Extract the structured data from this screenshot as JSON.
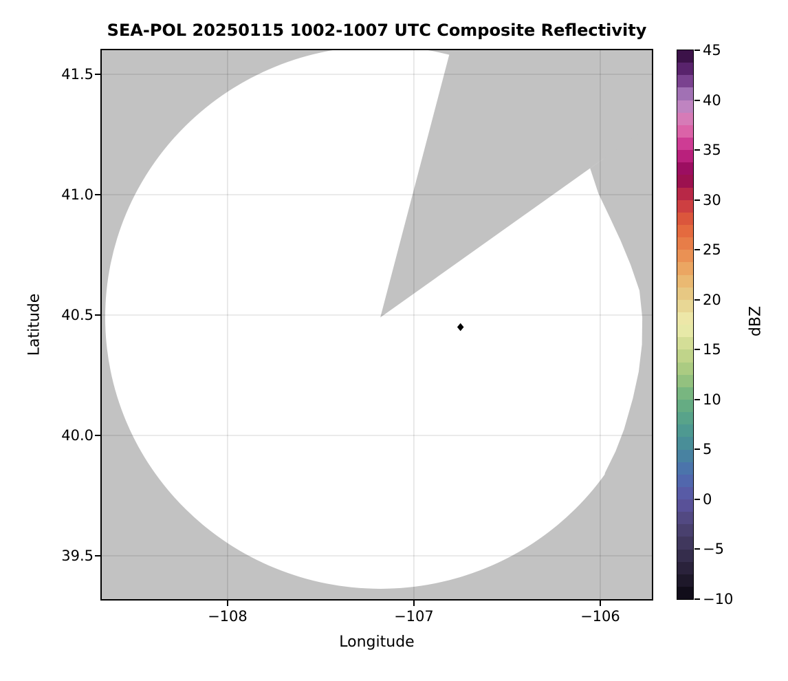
{
  "figure": {
    "background_color": "#ffffff",
    "plot_background_color": "#c2c2c2",
    "grid_color": "rgba(0,0,0,0.11)",
    "spine_color": "#000000"
  },
  "chart_data": {
    "type": "heatmap",
    "subtype": "radar-ppi-composite-reflectivity",
    "title": "SEA-POL 20250115 1002-1007 UTC Composite Reflectivity",
    "xlabel": "Longitude",
    "ylabel": "Latitude",
    "xlim": [
      -108.675,
      -105.723
    ],
    "ylim": [
      39.32,
      41.6
    ],
    "x_ticks": [
      -108,
      -107,
      -106
    ],
    "x_tick_labels": [
      "−108",
      "−107",
      "−106"
    ],
    "y_ticks": [
      41.5,
      41.0,
      40.5,
      40.0,
      39.5
    ],
    "y_tick_labels": [
      "41.5",
      "41.0",
      "40.5",
      "40.0",
      "39.5"
    ],
    "grid": true,
    "radar": {
      "center_lon": -107.18,
      "center_lat": 40.49,
      "coverage_radius_lon_deg": 1.4766,
      "coverage_radius_lat_deg": 1.127,
      "coverage_fill": "#ffffff",
      "no_data_fill": "#c2c2c2",
      "echoes": "none visible - reflectivity field blank within coverage",
      "missing_sectors": [
        {
          "type": "wedge",
          "azimuth_start_deg": 14.5,
          "azimuth_end_deg": 54.2,
          "radius_frac_start": 0,
          "radius_frac_end": 1
        },
        {
          "type": "annular-wedge",
          "azimuth_start_deg": 54.2,
          "azimuth_end_deg": 128,
          "radius_frac_end": 1,
          "inner_edge": [
            [
              54.2,
              0.94
            ],
            [
              60,
              0.915
            ],
            [
              66,
              0.912
            ],
            [
              72,
              0.918
            ],
            [
              78,
              0.93
            ],
            [
              84,
              0.947
            ],
            [
              90,
              0.952
            ],
            [
              96,
              0.956
            ],
            [
              102,
              0.96
            ],
            [
              108,
              0.965
            ],
            [
              115,
              0.977
            ],
            [
              120,
              0.987
            ],
            [
              125,
              0.997
            ],
            [
              128,
              1.02
            ]
          ]
        }
      ]
    },
    "marker": {
      "lon": -106.75,
      "lat": 40.45,
      "shape": "diamond",
      "color": "#000000"
    },
    "colorbar": {
      "label": "dBZ",
      "min": -10,
      "max": 45,
      "bin_size": 1.25,
      "ticks": [
        45,
        40,
        35,
        30,
        25,
        20,
        15,
        10,
        5,
        0,
        -5,
        -10
      ],
      "tick_labels": [
        "45",
        "40",
        "35",
        "30",
        "25",
        "20",
        "15",
        "10",
        "5",
        "0",
        "−5",
        "−10"
      ],
      "colormap_anchors": [
        [
          -10.0,
          "#0a0712"
        ],
        [
          -7.5,
          "#241d32"
        ],
        [
          -5.0,
          "#3b3254"
        ],
        [
          -2.5,
          "#4e4577"
        ],
        [
          0.0,
          "#5c55a3"
        ],
        [
          2.5,
          "#4d6db0"
        ],
        [
          5.0,
          "#46899c"
        ],
        [
          7.5,
          "#519e8d"
        ],
        [
          10.0,
          "#6bb080"
        ],
        [
          12.5,
          "#a0c67e"
        ],
        [
          15.0,
          "#cbd88e"
        ],
        [
          17.5,
          "#f0efb1"
        ],
        [
          20.0,
          "#e5cf8c"
        ],
        [
          22.5,
          "#ebb169"
        ],
        [
          25.0,
          "#e9864d"
        ],
        [
          27.5,
          "#e2613a"
        ],
        [
          30.0,
          "#c63343"
        ],
        [
          32.5,
          "#8e0553"
        ],
        [
          35.0,
          "#c7298a"
        ],
        [
          37.5,
          "#e176b2"
        ],
        [
          40.0,
          "#b488c6"
        ],
        [
          42.5,
          "#672b7d"
        ],
        [
          45.0,
          "#2d0a38"
        ]
      ]
    }
  }
}
